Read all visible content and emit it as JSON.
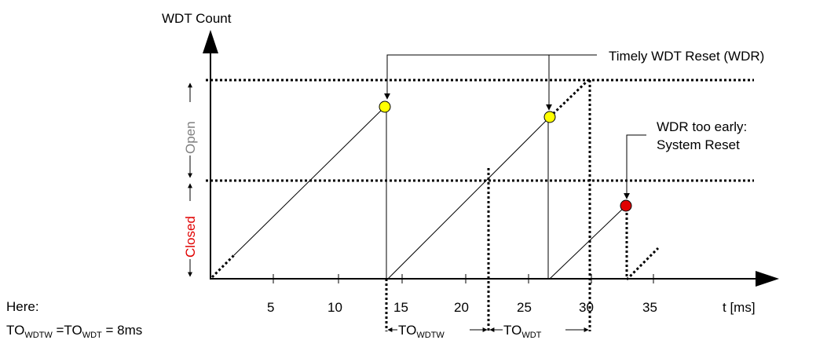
{
  "diagram": {
    "y_axis_label": "WDT Count",
    "x_axis_label": "t [ms]",
    "x_ticks": [
      "5",
      "10",
      "15",
      "20",
      "25",
      "30",
      "35"
    ],
    "window_open_label": "Open",
    "window_closed_label": "Closed",
    "annotation_timely": "Timely WDT Reset (WDR)",
    "annotation_early_line1": "WDR too early:",
    "annotation_early_line2": "System Reset",
    "note_here": "Here:",
    "note_to1_main": "TO",
    "note_to1_sub": "WDTW",
    "note_eq": " =",
    "note_to2_main": "TO",
    "note_to2_sub": "WDT",
    "note_value": "  = 8ms",
    "span1_main": "TO",
    "span1_sub": "WDTW",
    "span2_main": "TO",
    "span2_sub": "WDT",
    "colors": {
      "timely_reset": "#ffff00",
      "early_reset": "#e00000",
      "open_label": "#808080",
      "closed_label": "#e00000"
    }
  }
}
